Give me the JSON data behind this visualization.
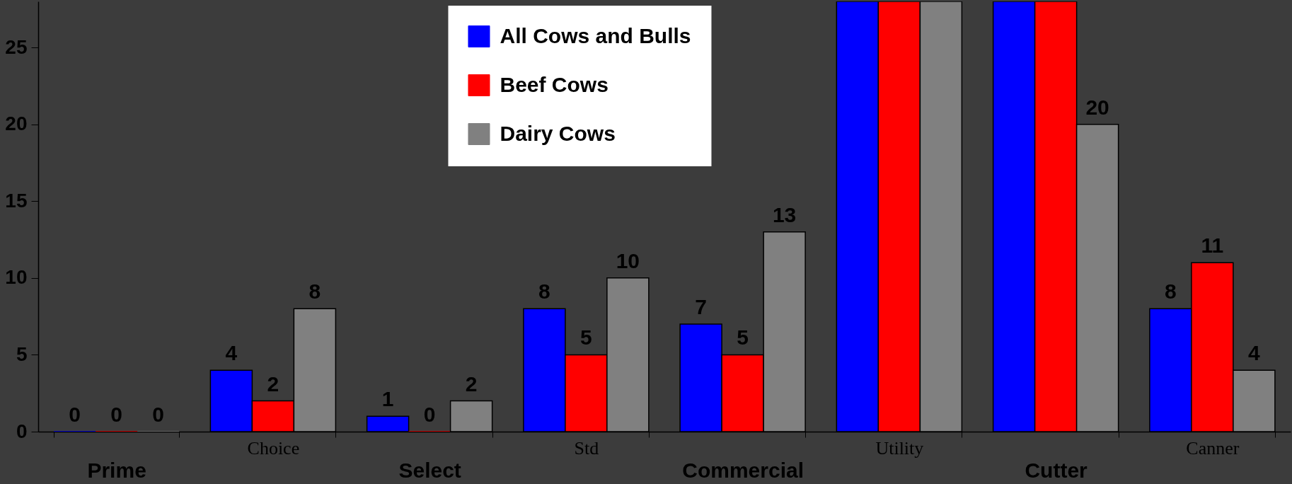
{
  "chart_data": {
    "type": "bar",
    "categories": [
      "Prime",
      "Choice",
      "Select",
      "Std",
      "Commercial",
      "Utility",
      "Cutter",
      "Canner"
    ],
    "series": [
      {
        "name": "All Cows and Bulls",
        "color": "#0000ff",
        "values": [
          0,
          4,
          1,
          8,
          7,
          28,
          28,
          8
        ],
        "value_labels": [
          "0",
          "4",
          "1",
          "8",
          "7",
          null,
          null,
          "8"
        ]
      },
      {
        "name": "Beef Cows",
        "color": "#ff0000",
        "values": [
          0,
          2,
          0,
          5,
          5,
          28,
          28,
          11
        ],
        "value_labels": [
          "0",
          "2",
          "0",
          "5",
          "5",
          null,
          null,
          "11"
        ]
      },
      {
        "name": "Dairy Cows",
        "color": "#808080",
        "values": [
          0,
          8,
          2,
          10,
          13,
          28,
          20,
          4
        ],
        "value_labels": [
          "0",
          "8",
          "2",
          "10",
          "13",
          null,
          "20",
          "4"
        ]
      }
    ],
    "ylim": [
      0,
      28
    ],
    "yticks": [
      0,
      5,
      10,
      15,
      20,
      25
    ],
    "legend": "top"
  }
}
